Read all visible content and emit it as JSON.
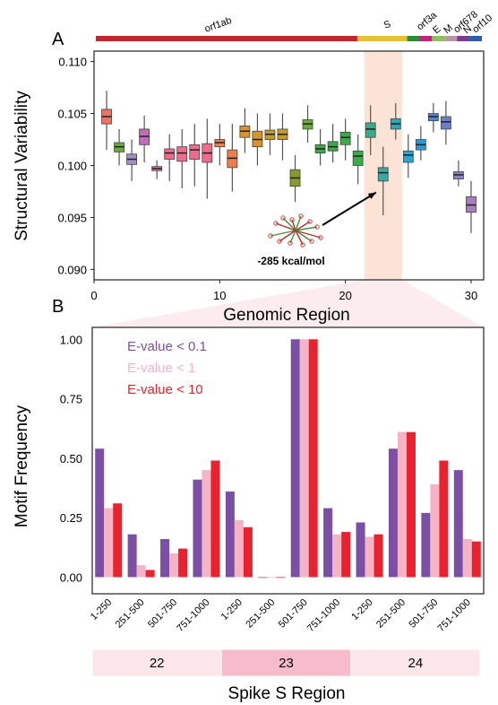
{
  "colors": {
    "highlight": "#fbe3d6",
    "gene_colors": {
      "orf1ab": "#c1272d",
      "S": "#e3c333",
      "orf3a": "#2c8a3c",
      "E": "#c4237b",
      "M": "#8cc060",
      "orf678": "#b79aa0",
      "N": "#7a3d8f",
      "orf10": "#2a5fa6"
    },
    "region_band": [
      "#fbe6ea",
      "#f6bccb",
      "#fbe6ea"
    ],
    "evalue_series": [
      "#7b4fa3",
      "#f4b4c6",
      "#e8222e"
    ]
  },
  "chart_data": [
    {
      "type": "box",
      "panel_label": "A",
      "xlabel": "Genomic Region",
      "ylabel": "Structural Variability",
      "xlim": [
        0,
        31
      ],
      "ylim": [
        0.089,
        0.111
      ],
      "xticks": [
        0,
        10,
        20,
        30
      ],
      "yticks": [
        "0.090",
        "0.095",
        "0.100",
        "0.105",
        "0.110"
      ],
      "highlight_x": [
        21.5,
        24.5
      ],
      "genes": [
        {
          "name": "orf1ab",
          "start": 0,
          "end": 21
        },
        {
          "name": "S",
          "start": 21,
          "end": 25
        },
        {
          "name": "orf3a",
          "start": 25,
          "end": 26
        },
        {
          "name": "E",
          "start": 26,
          "end": 27
        },
        {
          "name": "M",
          "start": 27,
          "end": 28
        },
        {
          "name": "orf678",
          "start": 28,
          "end": 29
        },
        {
          "name": "N",
          "start": 29,
          "end": 30
        },
        {
          "name": "orf10",
          "start": 30,
          "end": 31
        }
      ],
      "boxes": [
        {
          "x": 1,
          "min": 0.1015,
          "q1": 0.104,
          "median": 0.1047,
          "q3": 0.1054,
          "max": 0.1072,
          "color": "#f07166"
        },
        {
          "x": 2,
          "min": 0.1,
          "q1": 0.1013,
          "median": 0.1018,
          "q3": 0.1022,
          "max": 0.1035,
          "color": "#6aaa3a"
        },
        {
          "x": 3,
          "min": 0.0985,
          "q1": 0.1001,
          "median": 0.1006,
          "q3": 0.1011,
          "max": 0.1025,
          "color": "#a48ec6"
        },
        {
          "x": 4,
          "min": 0.1003,
          "q1": 0.102,
          "median": 0.1028,
          "q3": 0.1035,
          "max": 0.1048,
          "color": "#c06cb8"
        },
        {
          "x": 5,
          "min": 0.0987,
          "q1": 0.0995,
          "median": 0.0997,
          "q3": 0.0999,
          "max": 0.1005,
          "color": "#e86aa6"
        },
        {
          "x": 6,
          "min": 0.0985,
          "q1": 0.1006,
          "median": 0.1012,
          "q3": 0.1016,
          "max": 0.103,
          "color": "#ef6b8b"
        },
        {
          "x": 7,
          "min": 0.0978,
          "q1": 0.1004,
          "median": 0.1012,
          "q3": 0.1018,
          "max": 0.1035,
          "color": "#ef6b8b"
        },
        {
          "x": 8,
          "min": 0.098,
          "q1": 0.1006,
          "median": 0.1015,
          "q3": 0.102,
          "max": 0.104,
          "color": "#ef6b8b"
        },
        {
          "x": 9,
          "min": 0.0968,
          "q1": 0.1003,
          "median": 0.1012,
          "q3": 0.1021,
          "max": 0.1045,
          "color": "#ef6b8b"
        },
        {
          "x": 10,
          "min": 0.1,
          "q1": 0.1018,
          "median": 0.1022,
          "q3": 0.1025,
          "max": 0.104,
          "color": "#ef7d4e"
        },
        {
          "x": 11,
          "min": 0.0975,
          "q1": 0.0998,
          "median": 0.1007,
          "q3": 0.1015,
          "max": 0.104,
          "color": "#ef7d4e"
        },
        {
          "x": 12,
          "min": 0.1012,
          "q1": 0.1027,
          "median": 0.1033,
          "q3": 0.1038,
          "max": 0.1055,
          "color": "#d9932e"
        },
        {
          "x": 13,
          "min": 0.1,
          "q1": 0.1018,
          "median": 0.1025,
          "q3": 0.1033,
          "max": 0.105,
          "color": "#d9932e"
        },
        {
          "x": 14,
          "min": 0.101,
          "q1": 0.1025,
          "median": 0.103,
          "q3": 0.1034,
          "max": 0.105,
          "color": "#c29a2e"
        },
        {
          "x": 15,
          "min": 0.1005,
          "q1": 0.1025,
          "median": 0.103,
          "q3": 0.1035,
          "max": 0.105,
          "color": "#c29a2e"
        },
        {
          "x": 16,
          "min": 0.0965,
          "q1": 0.098,
          "median": 0.0988,
          "q3": 0.0996,
          "max": 0.101,
          "color": "#8a9a2e"
        },
        {
          "x": 17,
          "min": 0.1022,
          "q1": 0.1035,
          "median": 0.104,
          "q3": 0.1044,
          "max": 0.1058,
          "color": "#6aaa3a"
        },
        {
          "x": 18,
          "min": 0.1,
          "q1": 0.1012,
          "median": 0.1016,
          "q3": 0.102,
          "max": 0.1035,
          "color": "#3aaa4a"
        },
        {
          "x": 19,
          "min": 0.1003,
          "q1": 0.1014,
          "median": 0.1018,
          "q3": 0.1023,
          "max": 0.104,
          "color": "#3aaa4a"
        },
        {
          "x": 20,
          "min": 0.1005,
          "q1": 0.102,
          "median": 0.1027,
          "q3": 0.1032,
          "max": 0.1045,
          "color": "#3aaa4a"
        },
        {
          "x": 21,
          "min": 0.0982,
          "q1": 0.1,
          "median": 0.1009,
          "q3": 0.1014,
          "max": 0.103,
          "color": "#3aaa4a"
        },
        {
          "x": 22,
          "min": 0.101,
          "q1": 0.1027,
          "median": 0.1035,
          "q3": 0.1041,
          "max": 0.1058,
          "color": "#3aaa8a"
        },
        {
          "x": 23,
          "min": 0.0952,
          "q1": 0.0985,
          "median": 0.0993,
          "q3": 0.0998,
          "max": 0.1018,
          "color": "#3aa8a4"
        },
        {
          "x": 24,
          "min": 0.1025,
          "q1": 0.1035,
          "median": 0.104,
          "q3": 0.1045,
          "max": 0.106,
          "color": "#2fa8b5"
        },
        {
          "x": 25,
          "min": 0.0988,
          "q1": 0.1003,
          "median": 0.101,
          "q3": 0.1014,
          "max": 0.103,
          "color": "#27a6cf"
        },
        {
          "x": 26,
          "min": 0.1005,
          "q1": 0.1015,
          "median": 0.102,
          "q3": 0.1025,
          "max": 0.1038,
          "color": "#2a98d8"
        },
        {
          "x": 27,
          "min": 0.1032,
          "q1": 0.1043,
          "median": 0.1047,
          "q3": 0.105,
          "max": 0.106,
          "color": "#4f86cf"
        },
        {
          "x": 28,
          "min": 0.102,
          "q1": 0.1035,
          "median": 0.1042,
          "q3": 0.1047,
          "max": 0.1062,
          "color": "#6d7fc4"
        },
        {
          "x": 29,
          "min": 0.098,
          "q1": 0.0987,
          "median": 0.0991,
          "q3": 0.0994,
          "max": 0.1005,
          "color": "#8f82c2"
        },
        {
          "x": 30,
          "min": 0.0935,
          "q1": 0.0955,
          "median": 0.0962,
          "q3": 0.097,
          "max": 0.0985,
          "color": "#a77ec0"
        }
      ],
      "annotation": {
        "text": "-285 kcal/mol",
        "points_to_x": 23
      }
    },
    {
      "type": "bar",
      "panel_label": "B",
      "ylabel": "Motif Frequency",
      "xlabel": "Spike S Region",
      "ylim": [
        -0.07,
        1.05
      ],
      "yticks": [
        "0.00",
        "0.25",
        "0.50",
        "0.75",
        "1.00"
      ],
      "categories": [
        "1-250",
        "251-500",
        "501-750",
        "751-1000",
        "1-250",
        "251-500",
        "501-750",
        "751-1000",
        "1-250",
        "251-500",
        "501-750",
        "751-1000"
      ],
      "groups": [
        "22",
        "23",
        "24"
      ],
      "series": [
        {
          "name": "E-value < 0.1",
          "values": [
            0.54,
            0.18,
            0.16,
            0.41,
            0.36,
            0.0,
            1.0,
            0.29,
            0.23,
            0.54,
            0.27,
            0.45
          ]
        },
        {
          "name": "E-value < 1",
          "values": [
            0.29,
            0.05,
            0.1,
            0.45,
            0.24,
            0.0,
            1.0,
            0.18,
            0.17,
            0.61,
            0.39,
            0.16
          ]
        },
        {
          "name": "E-value < 10",
          "values": [
            0.31,
            0.03,
            0.12,
            0.49,
            0.21,
            0.0,
            1.0,
            0.19,
            0.18,
            0.61,
            0.49,
            0.15
          ]
        }
      ]
    }
  ]
}
